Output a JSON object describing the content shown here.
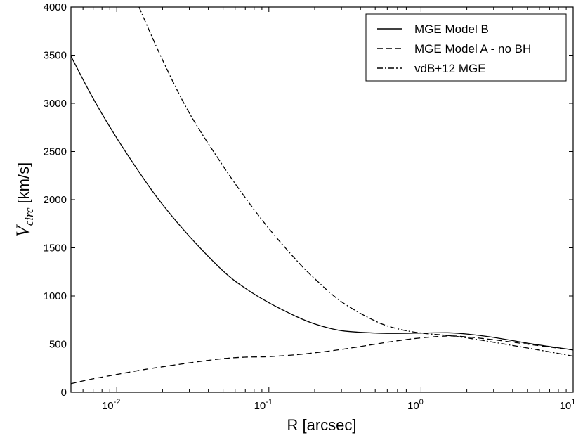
{
  "chart_data": {
    "type": "line",
    "title": "",
    "xlabel": "R [arcsec]",
    "ylabel_main": "V",
    "ylabel_sub": "circ",
    "ylabel_unit": "[km/s]",
    "xscale": "log",
    "xlim": [
      0.005,
      10
    ],
    "ylim": [
      0,
      4000
    ],
    "grid": false,
    "legend_position": "top-right",
    "yticks": [
      0,
      500,
      1000,
      1500,
      2000,
      2500,
      3000,
      3500,
      4000
    ],
    "ytick_labels": [
      "0",
      "500",
      "1000",
      "1500",
      "2000",
      "2500",
      "3000",
      "3500",
      "4000"
    ],
    "xticks": [
      {
        "value": 0.01,
        "base": "10",
        "exp": "-2"
      },
      {
        "value": 0.1,
        "base": "10",
        "exp": "-1"
      },
      {
        "value": 1,
        "base": "10",
        "exp": "0"
      },
      {
        "value": 10,
        "base": "10",
        "exp": "1"
      }
    ],
    "series": [
      {
        "name": "MGE Model B",
        "style": "solid",
        "x": [
          0.005,
          0.007,
          0.01,
          0.015,
          0.02,
          0.03,
          0.05,
          0.07,
          0.1,
          0.15,
          0.2,
          0.3,
          0.5,
          0.7,
          1.0,
          1.5,
          2.0,
          3.0,
          5.0,
          7.0,
          10.0
        ],
        "y": [
          3490,
          3050,
          2640,
          2220,
          1950,
          1620,
          1260,
          1080,
          930,
          790,
          710,
          640,
          615,
          612,
          615,
          618,
          605,
          570,
          510,
          475,
          440
        ]
      },
      {
        "name": "MGE Model A - no BH",
        "style": "dashed",
        "x": [
          0.005,
          0.007,
          0.01,
          0.015,
          0.02,
          0.03,
          0.05,
          0.07,
          0.1,
          0.15,
          0.2,
          0.3,
          0.5,
          0.7,
          1.0,
          1.5,
          2.0,
          3.0,
          5.0,
          7.0,
          10.0
        ],
        "y": [
          90,
          140,
          185,
          235,
          265,
          305,
          350,
          365,
          370,
          390,
          410,
          445,
          500,
          535,
          565,
          585,
          575,
          545,
          500,
          470,
          440
        ]
      },
      {
        "name": "vdB+12 MGE",
        "style": "dashdot",
        "x": [
          0.014,
          0.02,
          0.03,
          0.05,
          0.07,
          0.1,
          0.15,
          0.2,
          0.3,
          0.5,
          0.7,
          1.0,
          1.5,
          2.0,
          3.0,
          5.0,
          7.0,
          10.0
        ],
        "y": [
          4000,
          3450,
          2900,
          2350,
          2020,
          1700,
          1380,
          1180,
          940,
          740,
          660,
          615,
          590,
          565,
          520,
          460,
          420,
          375
        ]
      }
    ]
  }
}
